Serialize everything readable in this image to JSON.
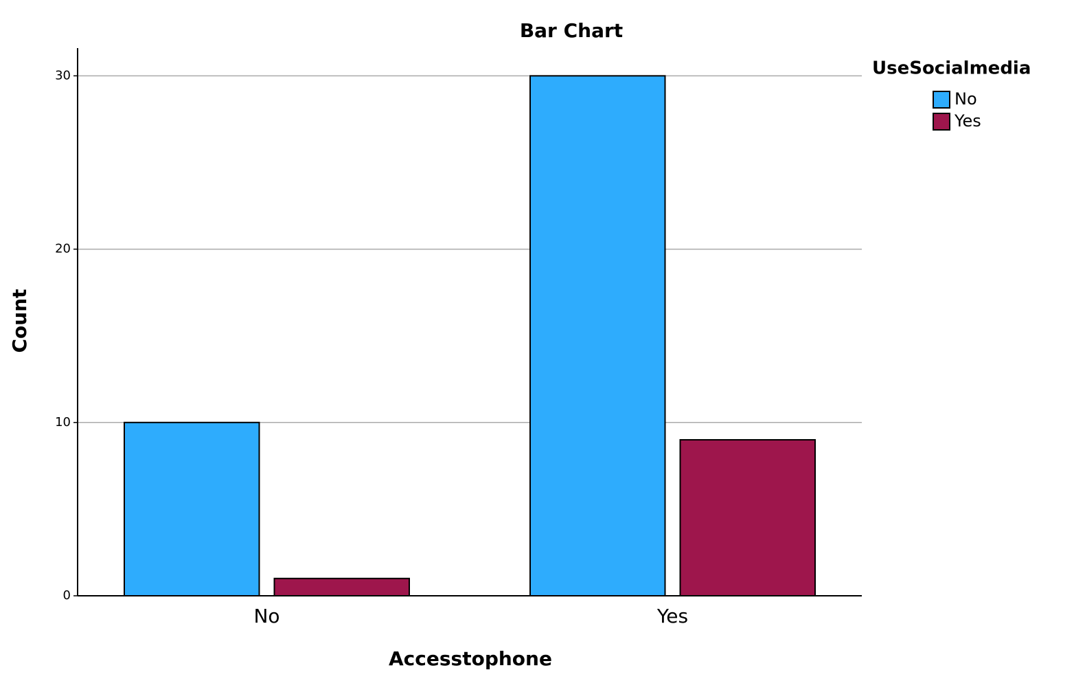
{
  "chart_data": {
    "type": "bar",
    "title": "Bar Chart",
    "x_label": "Accesstophone",
    "y_label": "Count",
    "legend_title": "UseSocialmedia",
    "categories": [
      "No",
      "Yes"
    ],
    "series": [
      {
        "name": "No",
        "color": "#2eacfd",
        "values": [
          10,
          30
        ]
      },
      {
        "name": "Yes",
        "color": "#9e164c",
        "values": [
          1,
          9
        ]
      }
    ],
    "ylim": [
      0,
      31.6
    ],
    "yticks": [
      0,
      10,
      20,
      30
    ],
    "grid": true,
    "legend": "right"
  }
}
